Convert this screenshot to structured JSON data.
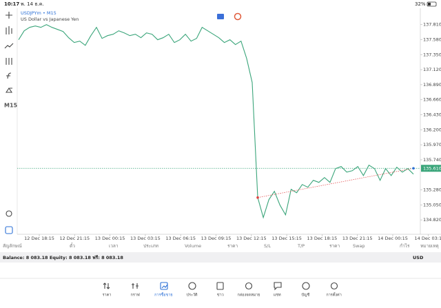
{
  "status_bar": {
    "time": "10:17",
    "date": "พ. 14 ธ.ค.",
    "battery": "32%"
  },
  "sidebar": {
    "timeframe": "M15"
  },
  "chart": {
    "type": "line",
    "symbol": "USDJPYm • M15",
    "description": "US Dollar vs Japanese Yen",
    "color": "#3aa57a",
    "values": [
      137.578,
      137.715,
      137.768,
      137.789,
      137.768,
      137.81,
      137.768,
      137.736,
      137.704,
      137.61,
      137.536,
      137.557,
      137.493,
      137.641,
      137.768,
      137.599,
      137.641,
      137.662,
      137.715,
      137.683,
      137.641,
      137.662,
      137.61,
      137.683,
      137.662,
      137.578,
      137.61,
      137.662,
      137.536,
      137.578,
      137.662,
      137.557,
      137.599,
      137.768,
      137.715,
      137.662,
      137.61,
      137.536,
      137.578,
      137.504,
      137.557,
      137.293,
      136.924,
      135.162,
      134.856,
      135.13,
      135.257,
      135.046,
      134.898,
      135.288,
      135.236,
      135.362,
      135.32,
      135.426,
      135.394,
      135.468,
      135.394,
      135.605,
      135.637,
      135.552,
      135.573,
      135.637,
      135.499,
      135.658,
      135.605,
      135.426,
      135.605,
      135.499,
      135.626,
      135.552,
      135.605,
      135.521
    ],
    "ylim": [
      134.6,
      138.06
    ],
    "yticks": [
      {
        "value": 137.81,
        "label": "137.810"
      },
      {
        "value": 137.58,
        "label": "137.580"
      },
      {
        "value": 137.35,
        "label": "137.350"
      },
      {
        "value": 137.12,
        "label": "137.120"
      },
      {
        "value": 136.89,
        "label": "136.890"
      },
      {
        "value": 136.66,
        "label": "136.660"
      },
      {
        "value": 136.43,
        "label": "136.430"
      },
      {
        "value": 136.2,
        "label": "136.200"
      },
      {
        "value": 135.97,
        "label": "135.970"
      },
      {
        "value": 135.74,
        "label": "135.740"
      },
      {
        "value": 135.28,
        "label": "135.280"
      },
      {
        "value": 135.05,
        "label": "135.050"
      },
      {
        "value": 134.82,
        "label": "134.820"
      }
    ],
    "x_labels": [
      "12 Dec 18:15",
      "12 Dec 21:15",
      "13 Dec 00:15",
      "13 Dec 03:15",
      "13 Dec 06:15",
      "13 Dec 09:15",
      "13 Dec 12:15",
      "13 Dec 15:15",
      "13 Dec 18:15",
      "13 Dec 21:15",
      "14 Dec 00:15",
      "14 Dec 03:1"
    ],
    "current_price": {
      "value": 135.61,
      "label": "135.610"
    }
  },
  "table_header": [
    "สัญลักษณ์",
    "ตั๋ว",
    "เวลา",
    "ประเภท",
    "Volume",
    "ราคา",
    "S/L",
    "T/P",
    "ราคา",
    "Swap",
    "กำไร",
    "หมายเหตุ"
  ],
  "balance": {
    "text": "Balance: 8 083.18 Equity: 8 083.18 ฟรี: 8 083.18",
    "currency": "USD"
  },
  "nav": [
    "ราคา",
    "กราฟ",
    "การซื้อขาย",
    "ประวัติ",
    "ข่าว",
    "กล่องจดหมาย",
    "แชท",
    "บัญชี",
    "การตั้งค่า"
  ]
}
